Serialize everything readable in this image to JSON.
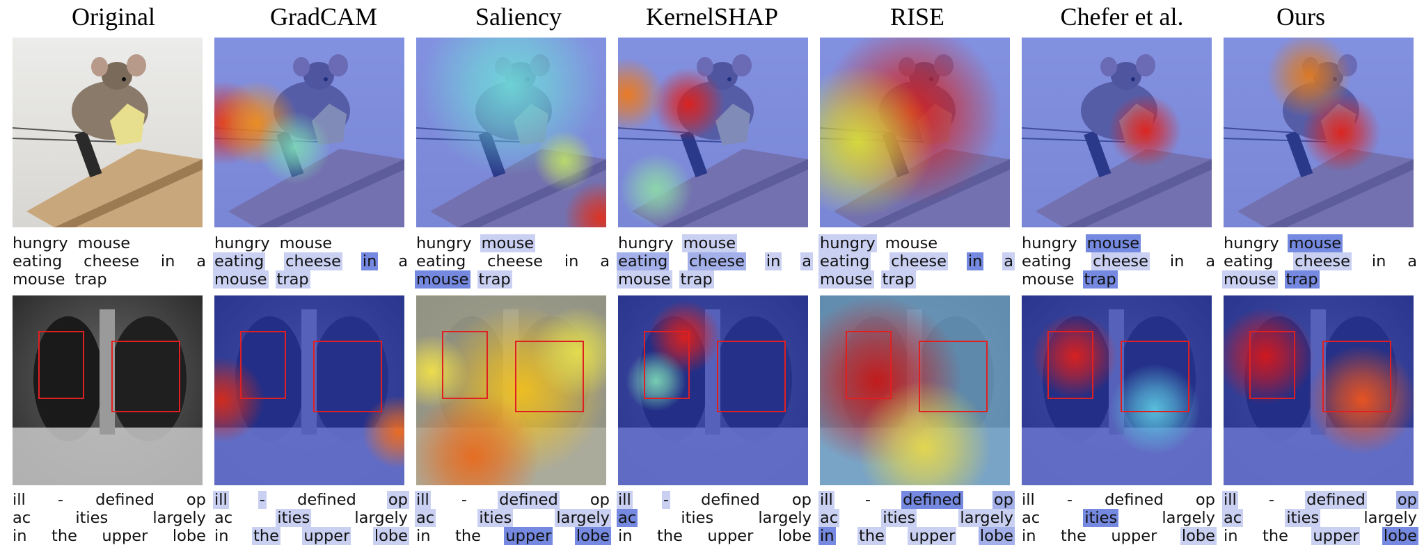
{
  "columns": [
    {
      "title": "Original",
      "mouse_heat": [],
      "xray_heat": [],
      "xray_haze": "",
      "mouse_tokens": [
        [
          "hungry",
          0
        ],
        [
          "mouse",
          0
        ],
        [
          "eating",
          0
        ],
        [
          "cheese",
          0
        ],
        [
          "in",
          0
        ],
        [
          "a",
          0
        ],
        [
          "mouse",
          0
        ],
        [
          "trap",
          0
        ]
      ],
      "xray_tokens": [
        [
          "ill",
          0
        ],
        [
          "-",
          0
        ],
        [
          "defined",
          0
        ],
        [
          "op",
          0
        ],
        [
          "ac",
          0
        ],
        [
          "ities",
          0
        ],
        [
          "largely",
          0
        ],
        [
          "in",
          0
        ],
        [
          "the",
          0
        ],
        [
          "upper",
          0
        ],
        [
          "lobe",
          0
        ]
      ]
    },
    {
      "title": "GradCAM",
      "mouse_heat": [
        [
          0.05,
          0.45,
          0.14,
          "#e02a1c"
        ],
        [
          0.22,
          0.45,
          0.14,
          "#ee8e1c"
        ],
        [
          0.42,
          0.58,
          0.12,
          "#7cd6b5"
        ]
      ],
      "xray_heat": [
        [
          0.04,
          0.55,
          0.14,
          "#d82a18"
        ],
        [
          0.97,
          0.72,
          0.12,
          "#f06b1c"
        ]
      ],
      "xray_haze": "",
      "mouse_tokens": [
        [
          "hungry",
          0
        ],
        [
          "mouse",
          0
        ],
        [
          "eating",
          1
        ],
        [
          "cheese",
          1
        ],
        [
          "in",
          3
        ],
        [
          "a",
          0
        ],
        [
          "mouse",
          1
        ],
        [
          "trap",
          1
        ]
      ],
      "xray_tokens": [
        [
          "ill",
          1
        ],
        [
          "-",
          1
        ],
        [
          "defined",
          0
        ],
        [
          "op",
          1
        ],
        [
          "ac",
          0
        ],
        [
          "ities",
          1
        ],
        [
          "largely",
          0
        ],
        [
          "in",
          0
        ],
        [
          "the",
          1
        ],
        [
          "upper",
          1
        ],
        [
          "lobe",
          1
        ]
      ]
    },
    {
      "title": "Saliency",
      "mouse_heat": [
        [
          0.97,
          0.95,
          0.12,
          "#e0301c"
        ],
        [
          0.5,
          0.25,
          0.3,
          "#6fd8d8"
        ],
        [
          0.78,
          0.65,
          0.1,
          "#bde06a"
        ]
      ],
      "xray_heat": [
        [
          0.55,
          0.5,
          0.28,
          "#f2c01c"
        ],
        [
          0.3,
          0.85,
          0.22,
          "#e86a1c"
        ],
        [
          0.08,
          0.4,
          0.12,
          "#f0e04a"
        ],
        [
          0.85,
          0.3,
          0.15,
          "#e6e04c"
        ]
      ],
      "xray_haze": "#e9e07a",
      "mouse_tokens": [
        [
          "hungry",
          0
        ],
        [
          "mouse",
          1
        ],
        [
          "eating",
          0
        ],
        [
          "cheese",
          0
        ],
        [
          "in",
          0
        ],
        [
          "a",
          0
        ],
        [
          "mouse",
          3
        ],
        [
          "trap",
          1
        ]
      ],
      "xray_tokens": [
        [
          "ill",
          1
        ],
        [
          "-",
          0
        ],
        [
          "defined",
          1
        ],
        [
          "op",
          0
        ],
        [
          "ac",
          1
        ],
        [
          "ities",
          1
        ],
        [
          "largely",
          1
        ],
        [
          "in",
          0
        ],
        [
          "the",
          0
        ],
        [
          "upper",
          3
        ],
        [
          "lobe",
          3
        ]
      ]
    },
    {
      "title": "KernelSHAP",
      "mouse_heat": [
        [
          0.37,
          0.35,
          0.12,
          "#e0201a"
        ],
        [
          0.05,
          0.3,
          0.12,
          "#ef7a1c"
        ],
        [
          0.2,
          0.8,
          0.12,
          "#8ed9a8"
        ]
      ],
      "xray_heat": [
        [
          0.35,
          0.22,
          0.12,
          "#e0201a"
        ],
        [
          0.2,
          0.45,
          0.1,
          "#7cd6b5"
        ]
      ],
      "xray_haze": "",
      "mouse_tokens": [
        [
          "hungry",
          0
        ],
        [
          "mouse",
          1
        ],
        [
          "eating",
          2
        ],
        [
          "cheese",
          2
        ],
        [
          "in",
          1
        ],
        [
          "a",
          1
        ],
        [
          "mouse",
          1
        ],
        [
          "trap",
          1
        ]
      ],
      "xray_tokens": [
        [
          "ill",
          1
        ],
        [
          "-",
          1
        ],
        [
          "defined",
          0
        ],
        [
          "op",
          0
        ],
        [
          "ac",
          3
        ],
        [
          "ities",
          0
        ],
        [
          "largely",
          0
        ],
        [
          "in",
          0
        ],
        [
          "the",
          0
        ],
        [
          "upper",
          0
        ],
        [
          "lobe",
          0
        ]
      ]
    },
    {
      "title": "RISE",
      "mouse_heat": [
        [
          0.48,
          0.4,
          0.3,
          "#d81f1a"
        ],
        [
          0.2,
          0.55,
          0.25,
          "#d8de3a"
        ]
      ],
      "xray_heat": [
        [
          0.3,
          0.45,
          0.28,
          "#c81614"
        ],
        [
          0.55,
          0.8,
          0.22,
          "#e8d84a"
        ]
      ],
      "xray_haze": "#8fd3c9",
      "mouse_tokens": [
        [
          "hungry",
          1
        ],
        [
          "mouse",
          0
        ],
        [
          "eating",
          1
        ],
        [
          "cheese",
          1
        ],
        [
          "in",
          3
        ],
        [
          "a",
          1
        ],
        [
          "mouse",
          1
        ],
        [
          "trap",
          1
        ]
      ],
      "xray_tokens": [
        [
          "ill",
          1
        ],
        [
          "-",
          0
        ],
        [
          "defined",
          3
        ],
        [
          "op",
          2
        ],
        [
          "ac",
          1
        ],
        [
          "ities",
          1
        ],
        [
          "largely",
          1
        ],
        [
          "in",
          3
        ],
        [
          "the",
          1
        ],
        [
          "upper",
          1
        ],
        [
          "lobe",
          2
        ]
      ]
    },
    {
      "title": "Chefer et al.",
      "mouse_heat": [
        [
          0.65,
          0.49,
          0.12,
          "#e0201a"
        ]
      ],
      "xray_heat": [
        [
          0.28,
          0.32,
          0.14,
          "#e0201a"
        ],
        [
          0.7,
          0.6,
          0.15,
          "#5bc6e0"
        ]
      ],
      "xray_haze": "",
      "mouse_tokens": [
        [
          "hungry",
          0
        ],
        [
          "mouse",
          3
        ],
        [
          "eating",
          0
        ],
        [
          "cheese",
          1
        ],
        [
          "in",
          0
        ],
        [
          "a",
          0
        ],
        [
          "mouse",
          0
        ],
        [
          "trap",
          3
        ]
      ],
      "xray_tokens": [
        [
          "ill",
          0
        ],
        [
          "-",
          0
        ],
        [
          "defined",
          0
        ],
        [
          "op",
          0
        ],
        [
          "ac",
          0
        ],
        [
          "ities",
          3
        ],
        [
          "largely",
          0
        ],
        [
          "in",
          0
        ],
        [
          "the",
          0
        ],
        [
          "upper",
          0
        ],
        [
          "lobe",
          1
        ]
      ]
    },
    {
      "title": "Ours",
      "mouse_heat": [
        [
          0.62,
          0.5,
          0.13,
          "#e0201a"
        ],
        [
          0.45,
          0.2,
          0.14,
          "#e07a1c"
        ]
      ],
      "xray_heat": [
        [
          0.22,
          0.32,
          0.16,
          "#d8181a"
        ],
        [
          0.73,
          0.55,
          0.18,
          "#f0551c"
        ]
      ],
      "xray_haze": "",
      "mouse_tokens": [
        [
          "hungry",
          0
        ],
        [
          "mouse",
          3
        ],
        [
          "eating",
          0
        ],
        [
          "cheese",
          1
        ],
        [
          "in",
          0
        ],
        [
          "a",
          0
        ],
        [
          "mouse",
          1
        ],
        [
          "trap",
          3
        ]
      ],
      "xray_tokens": [
        [
          "ill",
          1
        ],
        [
          "-",
          0
        ],
        [
          "defined",
          1
        ],
        [
          "op",
          2
        ],
        [
          "ac",
          1
        ],
        [
          "ities",
          1
        ],
        [
          "largely",
          0
        ],
        [
          "in",
          0
        ],
        [
          "the",
          0
        ],
        [
          "upper",
          1
        ],
        [
          "lobe",
          3
        ]
      ]
    }
  ]
}
